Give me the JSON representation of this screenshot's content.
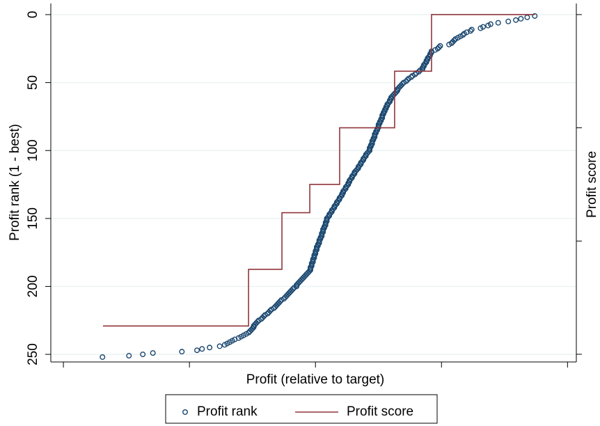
{
  "chart_data": {
    "type": "scatter",
    "x_label": "Profit (relative to target)",
    "y_label": "Profit rank (1 - best)",
    "y2_label": "Profit score",
    "xlim": [
      -2.1,
      2.07
    ],
    "xticks": [
      -2,
      -1,
      0,
      1,
      2
    ],
    "ylim": [
      255.6,
      -8.2
    ],
    "yticks": [
      0,
      50,
      100,
      150,
      200,
      250
    ],
    "y2lim": [
      -0.068,
      3.098
    ],
    "y2ticks": [
      0,
      1,
      2,
      3
    ],
    "grid": true,
    "legend": "bottom",
    "series": [
      {
        "name": "Profit rank",
        "type": "scatter",
        "color": "#1a476f",
        "x": [
          1.74,
          1.68,
          1.63,
          1.59,
          1.53,
          1.45,
          1.39,
          1.37,
          1.33,
          1.31,
          1.24,
          1.23,
          1.2,
          1.18,
          1.17,
          1.15,
          1.13,
          1.11,
          1.1,
          1.09,
          1.08,
          1.06,
          0.99,
          0.98,
          0.97,
          0.95,
          0.92,
          0.92,
          0.91,
          0.91,
          0.9,
          0.89,
          0.89,
          0.88,
          0.88,
          0.87,
          0.86,
          0.86,
          0.85,
          0.85,
          0.83,
          0.82,
          0.8,
          0.79,
          0.77,
          0.76,
          0.74,
          0.73,
          0.72,
          0.7,
          0.69,
          0.68,
          0.67,
          0.66,
          0.65,
          0.65,
          0.64,
          0.63,
          0.62,
          0.61,
          0.6,
          0.6,
          0.59,
          0.59,
          0.58,
          0.57,
          0.57,
          0.56,
          0.56,
          0.55,
          0.55,
          0.54,
          0.54,
          0.53,
          0.53,
          0.53,
          0.52,
          0.52,
          0.51,
          0.51,
          0.5,
          0.5,
          0.5,
          0.49,
          0.49,
          0.48,
          0.48,
          0.47,
          0.47,
          0.47,
          0.46,
          0.46,
          0.45,
          0.45,
          0.45,
          0.44,
          0.44,
          0.43,
          0.43,
          0.43,
          0.42,
          0.41,
          0.4,
          0.4,
          0.39,
          0.38,
          0.38,
          0.37,
          0.36,
          0.36,
          0.35,
          0.34,
          0.34,
          0.33,
          0.32,
          0.31,
          0.31,
          0.3,
          0.29,
          0.29,
          0.28,
          0.27,
          0.27,
          0.26,
          0.26,
          0.25,
          0.24,
          0.24,
          0.23,
          0.22,
          0.22,
          0.21,
          0.21,
          0.2,
          0.19,
          0.19,
          0.18,
          0.17,
          0.17,
          0.16,
          0.15,
          0.15,
          0.14,
          0.13,
          0.13,
          0.12,
          0.11,
          0.11,
          0.1,
          0.09,
          0.09,
          0.09,
          0.08,
          0.08,
          0.08,
          0.07,
          0.07,
          0.06,
          0.06,
          0.06,
          0.05,
          0.05,
          0.05,
          0.04,
          0.04,
          0.03,
          0.03,
          0.03,
          0.02,
          0.02,
          0.01,
          0.01,
          0.01,
          0.0,
          0.0,
          0.0,
          -0.01,
          -0.01,
          -0.01,
          -0.02,
          -0.02,
          -0.02,
          -0.03,
          -0.03,
          -0.03,
          -0.04,
          -0.04,
          -0.04,
          -0.05,
          -0.06,
          -0.07,
          -0.08,
          -0.09,
          -0.1,
          -0.11,
          -0.12,
          -0.13,
          -0.14,
          -0.15,
          -0.15,
          -0.17,
          -0.18,
          -0.19,
          -0.2,
          -0.21,
          -0.22,
          -0.23,
          -0.24,
          -0.25,
          -0.27,
          -0.28,
          -0.29,
          -0.3,
          -0.31,
          -0.32,
          -0.33,
          -0.35,
          -0.36,
          -0.37,
          -0.38,
          -0.4,
          -0.41,
          -0.42,
          -0.43,
          -0.45,
          -0.46,
          -0.47,
          -0.48,
          -0.49,
          -0.49,
          -0.5,
          -0.51,
          -0.52,
          -0.53,
          -0.55,
          -0.57,
          -0.59,
          -0.61,
          -0.64,
          -0.66,
          -0.68,
          -0.7,
          -0.72,
          -0.76,
          -0.84,
          -0.9,
          -0.94,
          -1.06,
          -1.29,
          -1.37,
          -1.48,
          -1.69
        ],
        "values": [
          1,
          2,
          3,
          4,
          5,
          6,
          7,
          8,
          9,
          10,
          11,
          12,
          13,
          14,
          15,
          16,
          17,
          18,
          19,
          20,
          21,
          22,
          23,
          24,
          25,
          26,
          27,
          28,
          29,
          30,
          31,
          32,
          33,
          34,
          35,
          36,
          37,
          38,
          39,
          40,
          41,
          42,
          43,
          44,
          45,
          46,
          47,
          48,
          49,
          50,
          51,
          52,
          53,
          54,
          55,
          56,
          57,
          58,
          59,
          60,
          61,
          62,
          63,
          64,
          65,
          66,
          67,
          68,
          69,
          70,
          71,
          72,
          73,
          74,
          75,
          76,
          77,
          78,
          79,
          80,
          81,
          82,
          83,
          84,
          85,
          86,
          87,
          88,
          89,
          90,
          91,
          92,
          93,
          94,
          95,
          96,
          97,
          98,
          99,
          100,
          101,
          102,
          103,
          104,
          105,
          106,
          107,
          108,
          109,
          110,
          111,
          112,
          113,
          114,
          115,
          116,
          117,
          118,
          119,
          120,
          121,
          122,
          123,
          124,
          125,
          126,
          127,
          128,
          129,
          130,
          131,
          132,
          133,
          134,
          135,
          136,
          137,
          138,
          139,
          140,
          141,
          142,
          143,
          144,
          145,
          146,
          147,
          148,
          149,
          150,
          151,
          152,
          153,
          154,
          155,
          156,
          157,
          158,
          159,
          160,
          161,
          162,
          163,
          164,
          165,
          166,
          167,
          168,
          169,
          170,
          171,
          172,
          173,
          174,
          175,
          176,
          177,
          178,
          179,
          180,
          181,
          182,
          183,
          184,
          185,
          186,
          187,
          188,
          189,
          190,
          191,
          192,
          193,
          194,
          195,
          196,
          197,
          198,
          199,
          200,
          201,
          202,
          203,
          204,
          205,
          206,
          207,
          208,
          209,
          210,
          211,
          212,
          213,
          214,
          215,
          216,
          217,
          218,
          219,
          220,
          221,
          222,
          223,
          224,
          225,
          226,
          227,
          228,
          229,
          230,
          231,
          232,
          233,
          234,
          235,
          236,
          237,
          238,
          239,
          240,
          241,
          242,
          243,
          244,
          245,
          246,
          247,
          248,
          249,
          250,
          251,
          252
        ]
      },
      {
        "name": "Profit score",
        "type": "line",
        "color": "#90353b",
        "axis": "y2",
        "x": [
          -1.686,
          -0.531,
          -0.531,
          -0.266,
          -0.266,
          -0.045,
          -0.045,
          0.192,
          0.192,
          0.628,
          0.628,
          0.921,
          0.921,
          1.739
        ],
        "values": [
          0.25,
          0.25,
          0.75,
          0.75,
          1.25,
          1.25,
          1.5,
          1.5,
          2,
          2,
          2.5,
          2.5,
          3,
          3
        ]
      }
    ]
  }
}
